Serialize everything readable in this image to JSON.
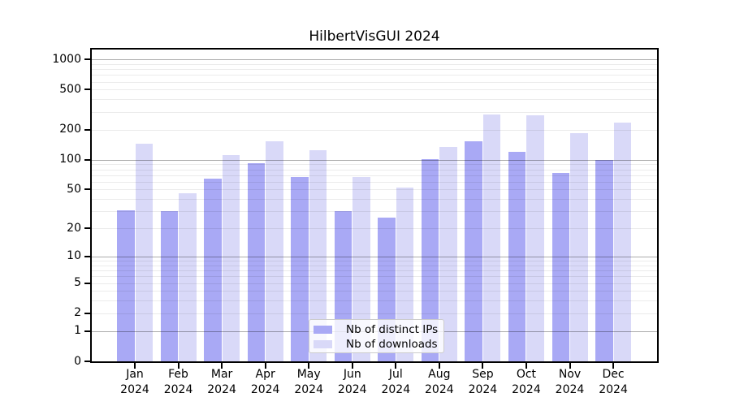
{
  "chart_data": {
    "type": "bar",
    "title": "HilbertVisGUI 2024",
    "x_categories": [
      "Jan",
      "Feb",
      "Mar",
      "Apr",
      "May",
      "Jun",
      "Jul",
      "Aug",
      "Sep",
      "Oct",
      "Nov",
      "Dec"
    ],
    "x_year": "2024",
    "series": [
      {
        "name": "Nb of distinct IPs",
        "color": "#a9a9f5",
        "values": [
          31,
          30,
          64,
          93,
          67,
          30,
          26,
          102,
          154,
          120,
          74,
          100
        ]
      },
      {
        "name": "Nb of downloads",
        "color": "#d9d9f8",
        "values": [
          145,
          46,
          111,
          154,
          125,
          67,
          52,
          135,
          283,
          278,
          185,
          235
        ]
      }
    ],
    "y_ticks": [
      0,
      1,
      2,
      5,
      10,
      20,
      50,
      100,
      200,
      500,
      1000
    ],
    "y_scale": "log10(value+1)",
    "ylim": [
      0,
      1280
    ],
    "grid": true,
    "grid_major_values": [
      1,
      10,
      100,
      1000
    ],
    "legend_position": "lower center"
  },
  "legend": {
    "items": [
      {
        "label": "Nb of distinct IPs",
        "color": "#a9a9f5"
      },
      {
        "label": "Nb of downloads",
        "color": "#d9d9f8"
      }
    ]
  }
}
